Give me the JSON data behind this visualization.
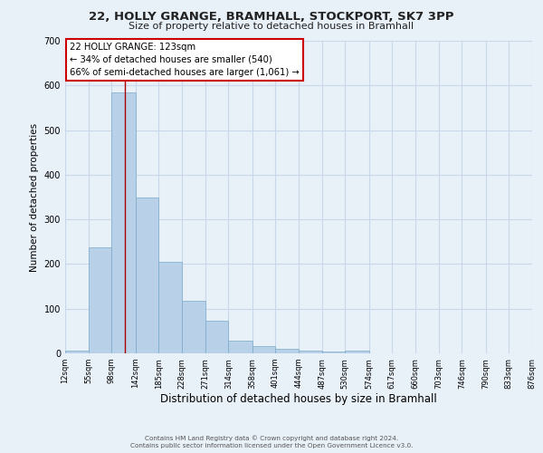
{
  "title_line1": "22, HOLLY GRANGE, BRAMHALL, STOCKPORT, SK7 3PP",
  "title_line2": "Size of property relative to detached houses in Bramhall",
  "xlabel": "Distribution of detached houses by size in Bramhall",
  "ylabel": "Number of detached properties",
  "bin_edges": [
    12,
    55,
    98,
    142,
    185,
    228,
    271,
    314,
    358,
    401,
    444,
    487,
    530,
    574,
    617,
    660,
    703,
    746,
    790,
    833,
    876
  ],
  "bar_heights": [
    7,
    238,
    585,
    350,
    204,
    118,
    73,
    28,
    16,
    10,
    7,
    5,
    6,
    0,
    0,
    0,
    0,
    0,
    0,
    0
  ],
  "bar_color": "#b8d0e8",
  "bar_edge_color": "#7aaac8",
  "grid_color": "#c8d8ea",
  "bg_color": "#e8f0f8",
  "vline_x": 123,
  "vline_color": "#aa0000",
  "annotation_text": "22 HOLLY GRANGE: 123sqm\n← 34% of detached houses are smaller (540)\n66% of semi-detached houses are larger (1,061) →",
  "ylim": [
    0,
    700
  ],
  "yticks": [
    0,
    100,
    200,
    300,
    400,
    500,
    600,
    700
  ],
  "tick_labels": [
    "12sqm",
    "55sqm",
    "98sqm",
    "142sqm",
    "185sqm",
    "228sqm",
    "271sqm",
    "314sqm",
    "358sqm",
    "401sqm",
    "444sqm",
    "487sqm",
    "530sqm",
    "574sqm",
    "617sqm",
    "660sqm",
    "703sqm",
    "746sqm",
    "790sqm",
    "833sqm",
    "876sqm"
  ],
  "footer_line1": "Contains HM Land Registry data © Crown copyright and database right 2024.",
  "footer_line2": "Contains public sector information licensed under the Open Government Licence v3.0."
}
